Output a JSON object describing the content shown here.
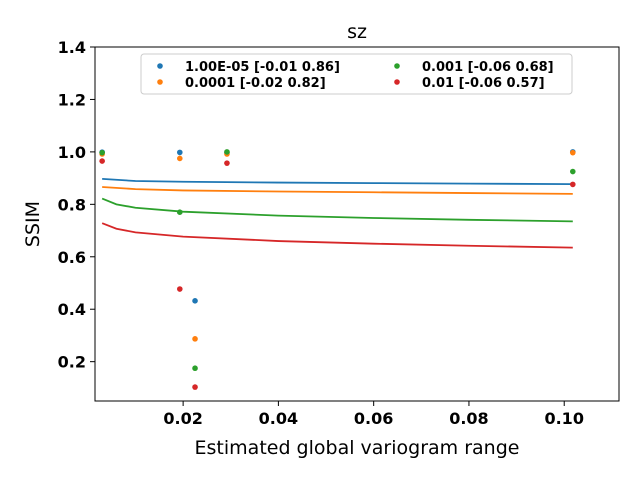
{
  "chart_data": {
    "type": "scatter",
    "title": "sz",
    "xlabel": "Estimated global variogram range",
    "ylabel": "SSIM",
    "xlim": [
      0.0015,
      0.1115
    ],
    "ylim": [
      0.05,
      1.4
    ],
    "xticks": [
      {
        "value": 0.02,
        "label": "0.02"
      },
      {
        "value": 0.04,
        "label": "0.04"
      },
      {
        "value": 0.06,
        "label": "0.06"
      },
      {
        "value": 0.08,
        "label": "0.08"
      },
      {
        "value": 0.1,
        "label": "0.10"
      }
    ],
    "yticks": [
      {
        "value": 0.2,
        "label": "0.2"
      },
      {
        "value": 0.4,
        "label": "0.4"
      },
      {
        "value": 0.6,
        "label": "0.6"
      },
      {
        "value": 0.8,
        "label": "0.8"
      },
      {
        "value": 1.0,
        "label": "1.0"
      },
      {
        "value": 1.2,
        "label": "1.2"
      },
      {
        "value": 1.4,
        "label": "1.4"
      }
    ],
    "grid": false,
    "legend_position": "top",
    "series": [
      {
        "name": "1.00E-05 [-0.01  0.86]",
        "color": "#1f77b4",
        "points": [
          {
            "x": 0.003,
            "y": 0.999
          },
          {
            "x": 0.0193,
            "y": 0.998
          },
          {
            "x": 0.0225,
            "y": 0.432
          },
          {
            "x": 0.0292,
            "y": 0.997
          },
          {
            "x": 0.1018,
            "y": 1.0
          }
        ],
        "fit": [
          {
            "x": 0.003,
            "y": 0.897
          },
          {
            "x": 0.01,
            "y": 0.889
          },
          {
            "x": 0.02,
            "y": 0.886
          },
          {
            "x": 0.04,
            "y": 0.883
          },
          {
            "x": 0.06,
            "y": 0.881
          },
          {
            "x": 0.08,
            "y": 0.879
          },
          {
            "x": 0.1018,
            "y": 0.877
          }
        ]
      },
      {
        "name": "0.0001 [-0.02  0.82]",
        "color": "#ff7f0e",
        "points": [
          {
            "x": 0.003,
            "y": 0.992
          },
          {
            "x": 0.0193,
            "y": 0.975
          },
          {
            "x": 0.0225,
            "y": 0.287
          },
          {
            "x": 0.0292,
            "y": 0.992
          },
          {
            "x": 0.1018,
            "y": 0.997
          }
        ],
        "fit": [
          {
            "x": 0.003,
            "y": 0.866
          },
          {
            "x": 0.01,
            "y": 0.858
          },
          {
            "x": 0.02,
            "y": 0.853
          },
          {
            "x": 0.04,
            "y": 0.849
          },
          {
            "x": 0.06,
            "y": 0.846
          },
          {
            "x": 0.08,
            "y": 0.843
          },
          {
            "x": 0.1018,
            "y": 0.84
          }
        ]
      },
      {
        "name": "0.001 [-0.06  0.68]",
        "color": "#2ca02c",
        "points": [
          {
            "x": 0.003,
            "y": 0.997
          },
          {
            "x": 0.0193,
            "y": 0.77
          },
          {
            "x": 0.0225,
            "y": 0.175
          },
          {
            "x": 0.0292,
            "y": 1.0
          },
          {
            "x": 0.1018,
            "y": 0.925
          }
        ],
        "fit": [
          {
            "x": 0.003,
            "y": 0.822
          },
          {
            "x": 0.006,
            "y": 0.8
          },
          {
            "x": 0.01,
            "y": 0.787
          },
          {
            "x": 0.02,
            "y": 0.772
          },
          {
            "x": 0.04,
            "y": 0.757
          },
          {
            "x": 0.06,
            "y": 0.748
          },
          {
            "x": 0.08,
            "y": 0.741
          },
          {
            "x": 0.1018,
            "y": 0.735
          }
        ]
      },
      {
        "name": "0.01 [-0.06  0.57]",
        "color": "#d62728",
        "points": [
          {
            "x": 0.003,
            "y": 0.965
          },
          {
            "x": 0.0193,
            "y": 0.477
          },
          {
            "x": 0.0225,
            "y": 0.103
          },
          {
            "x": 0.0292,
            "y": 0.957
          },
          {
            "x": 0.1018,
            "y": 0.876
          }
        ],
        "fit": [
          {
            "x": 0.003,
            "y": 0.728
          },
          {
            "x": 0.006,
            "y": 0.707
          },
          {
            "x": 0.01,
            "y": 0.693
          },
          {
            "x": 0.02,
            "y": 0.677
          },
          {
            "x": 0.04,
            "y": 0.66
          },
          {
            "x": 0.06,
            "y": 0.65
          },
          {
            "x": 0.08,
            "y": 0.642
          },
          {
            "x": 0.1018,
            "y": 0.635
          }
        ]
      }
    ]
  }
}
